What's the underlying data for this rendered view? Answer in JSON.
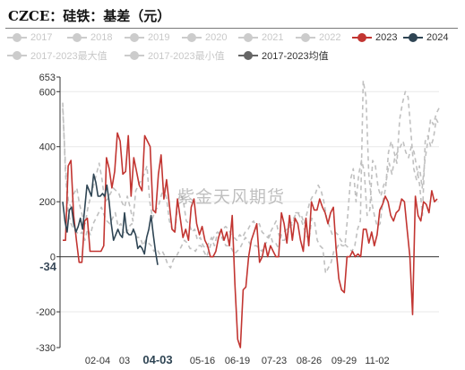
{
  "header": {
    "title": "CZCE：硅铁：基差（元）"
  },
  "watermark": "紫金天风期货",
  "legend": [
    {
      "label": "2017",
      "color": "#cccccc",
      "active": false
    },
    {
      "label": "2018",
      "color": "#cccccc",
      "active": false
    },
    {
      "label": "2019",
      "color": "#cccccc",
      "active": false
    },
    {
      "label": "2020",
      "color": "#cccccc",
      "active": false
    },
    {
      "label": "2021",
      "color": "#cccccc",
      "active": false
    },
    {
      "label": "2022",
      "color": "#cccccc",
      "active": false
    },
    {
      "label": "2023",
      "color": "#c23531",
      "active": true
    },
    {
      "label": "2024",
      "color": "#2f4554",
      "active": true
    },
    {
      "label": "2017-2023最大值",
      "color": "#cccccc",
      "active": false
    },
    {
      "label": "2017-2023最小值",
      "color": "#cccccc",
      "active": false
    },
    {
      "label": "2017-2023均值",
      "color": "#666666",
      "active": true
    }
  ],
  "chart_data": {
    "type": "line",
    "title": "CZCE：硅铁：基差（元）",
    "y_ticks": [
      653,
      600,
      400,
      200,
      0,
      -200,
      -330
    ],
    "y_marker": -34,
    "ylim": [
      -330,
      653
    ],
    "x_ticks": [
      "02-04",
      "03",
      "04-03",
      "05-16",
      "06-19",
      "07-23",
      "08-26",
      "09-29",
      "11-02"
    ],
    "x_highlight": "04-03",
    "series": [
      {
        "name": "2023",
        "color": "#c23531",
        "style": "solid",
        "values": [
          60,
          60,
          330,
          350,
          150,
          60,
          -20,
          -20,
          130,
          140,
          20,
          20,
          20,
          20,
          20,
          40,
          360,
          320,
          250,
          310,
          450,
          420,
          300,
          310,
          440,
          220,
          360,
          310,
          260,
          240,
          440,
          420,
          400,
          170,
          160,
          300,
          370,
          210,
          280,
          190,
          100,
          90,
          210,
          140,
          70,
          100,
          60,
          180,
          210,
          120,
          80,
          110,
          60,
          40,
          0,
          0,
          20,
          70,
          100,
          60,
          90,
          40,
          150,
          -100,
          -300,
          -330,
          -120,
          -110,
          0,
          60,
          90,
          120,
          -20,
          0,
          50,
          0,
          40,
          20,
          0,
          0,
          160,
          120,
          50,
          150,
          60,
          140,
          120,
          60,
          20,
          140,
          40,
          200,
          170,
          170,
          210,
          180,
          160,
          120,
          160,
          180,
          30,
          -80,
          -120,
          -130,
          0,
          0,
          20,
          0,
          10,
          0,
          100,
          100,
          50,
          90,
          40,
          80,
          170,
          190,
          220,
          200,
          150,
          130,
          160,
          170,
          210,
          200,
          100,
          0,
          -210,
          220,
          150,
          130,
          200,
          190,
          160,
          240,
          200,
          210
        ]
      },
      {
        "name": "2024",
        "color": "#2f4554",
        "style": "solid",
        "values": [
          200,
          130,
          90,
          170,
          180,
          120,
          90,
          110,
          140,
          100,
          180,
          260,
          240,
          220,
          300,
          270,
          220,
          220,
          230,
          220,
          260,
          200,
          120,
          60,
          80,
          100,
          80,
          70,
          160,
          90,
          80,
          80,
          100,
          80,
          30,
          40,
          30,
          10,
          70,
          100,
          150,
          80,
          20,
          -30
        ]
      },
      {
        "name": "2017-2023均值",
        "color": "#666666",
        "style": "dashed",
        "values": []
      },
      {
        "name": "2017-2023最大值",
        "color": "#c0c0c0",
        "style": "dashed",
        "values": [
          540,
          330,
          200,
          180,
          230,
          250,
          190,
          150,
          120,
          180,
          220,
          260,
          300,
          340,
          280,
          200,
          210,
          230,
          250,
          240,
          230,
          200,
          180,
          220,
          180,
          130,
          240,
          260,
          280,
          300,
          330,
          200,
          140,
          170,
          180,
          220,
          250,
          210,
          130,
          100,
          90,
          200,
          230,
          200,
          130,
          120,
          90,
          100,
          60,
          70,
          40,
          30,
          50,
          70,
          40,
          80,
          90,
          100,
          110,
          100,
          80,
          70,
          60,
          80,
          70,
          90,
          100,
          120,
          130,
          100,
          120,
          90,
          80,
          70,
          90,
          110,
          130,
          80,
          60,
          60,
          80,
          110,
          120,
          160,
          160,
          150,
          120,
          160,
          200,
          220,
          230,
          260,
          240,
          200,
          140,
          110,
          80,
          90,
          80,
          60,
          50,
          40,
          30,
          20,
          40,
          100,
          130,
          640,
          580,
          300,
          200,
          150,
          110,
          120,
          200,
          250,
          380,
          420,
          380,
          340,
          500,
          560,
          600,
          580,
          450,
          320,
          280,
          330,
          250,
          350,
          420,
          500,
          480,
          520,
          540
        ]
      },
      {
        "name": "2017-2023最小值",
        "color": "#c0c0c0",
        "style": "dashed",
        "values": [
          560,
          300,
          160,
          120,
          100,
          90,
          80,
          90,
          60,
          100,
          80,
          120,
          140,
          160,
          180,
          150,
          130,
          120,
          140,
          160,
          110,
          120,
          90,
          80,
          110,
          120,
          80,
          70,
          70,
          40,
          60,
          50,
          40,
          20,
          30,
          10,
          20,
          0,
          -30,
          -40,
          -10,
          0,
          20,
          40,
          60,
          50,
          30,
          30,
          20,
          40,
          40,
          20,
          0,
          30,
          60,
          80,
          90,
          80,
          60,
          40,
          40,
          30,
          10,
          20,
          30,
          50,
          70,
          60,
          40,
          40,
          40,
          30,
          20,
          40,
          60,
          80,
          50,
          50,
          30,
          80,
          90,
          100,
          110,
          130,
          150,
          160,
          140,
          110,
          80,
          60,
          140,
          130,
          60,
          40,
          30,
          -60,
          -40,
          -20,
          20,
          30,
          50,
          40,
          40,
          150,
          280,
          320,
          200,
          300,
          350,
          310,
          150,
          170,
          350,
          330,
          250,
          220,
          260,
          280,
          340,
          300,
          360,
          380,
          400,
          420,
          380,
          360,
          400,
          380,
          320,
          260,
          150,
          420,
          440,
          400,
          430,
          500,
          480
        ]
      }
    ]
  }
}
